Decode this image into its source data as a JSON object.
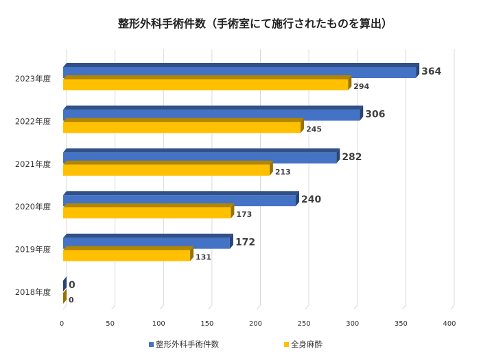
{
  "chart_data": {
    "type": "bar",
    "orientation": "horizontal",
    "title": "整形外科手術件数（手術室にて施行されたものを算出）",
    "categories": [
      "2023年度",
      "2022年度",
      "2021年度",
      "2020年度",
      "2019年度",
      "2018年度"
    ],
    "series": [
      {
        "name": "整形外科手術件数",
        "color": "#4472C4",
        "values": [
          364,
          306,
          282,
          240,
          172,
          0
        ]
      },
      {
        "name": "全身麻酔",
        "color": "#FFC000",
        "values": [
          294,
          245,
          213,
          173,
          131,
          0
        ]
      }
    ],
    "xlim": [
      0,
      400
    ],
    "xticks": [
      "0",
      "50",
      "100",
      "150",
      "200",
      "250",
      "300",
      "350",
      "400"
    ],
    "grid": "vertical",
    "legend": "bottom",
    "style": "3d"
  }
}
